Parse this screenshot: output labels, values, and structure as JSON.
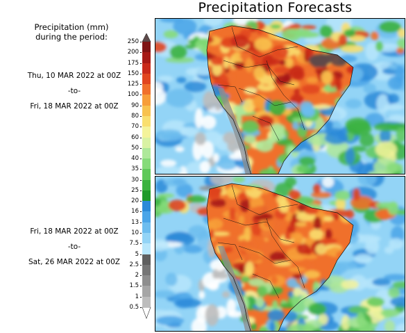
{
  "title": "Precipitation Forecasts",
  "legend": {
    "title_line1": "Precipitation (mm)",
    "title_line2": "during the period:",
    "levels": [
      "0.5",
      "1",
      "1.5",
      "2",
      "2.5",
      "5",
      "7.5",
      "10",
      "13",
      "16",
      "20",
      "25",
      "30",
      "35",
      "40",
      "50",
      "60",
      "70",
      "80",
      "90",
      "100",
      "125",
      "150",
      "175",
      "200",
      "250"
    ],
    "colors": [
      "#bdbdbd",
      "#a6a6a6",
      "#8e8e8e",
      "#767676",
      "#5f5f5f",
      "#b7e6fb",
      "#93d4f6",
      "#6dbdef",
      "#4aa5e8",
      "#2b8ad8",
      "#1f9a2a",
      "#3cb33f",
      "#5fc95a",
      "#86db7a",
      "#aee89a",
      "#d9f2a4",
      "#f4f39b",
      "#f9df6f",
      "#f8c24e",
      "#f79e39",
      "#f0702b",
      "#e1461f",
      "#c92a1a",
      "#a61a16",
      "#7f1414",
      "#5e4a4a"
    ]
  },
  "periods": [
    {
      "from": "Thu, 10 MAR 2022 at 00Z",
      "sep": "-to-",
      "to": "Fri, 18 MAR 2022 at 00Z"
    },
    {
      "from": "Fri, 18 MAR 2022 at 00Z",
      "sep": "-to-",
      "to": "Sat, 26 MAR 2022 at 00Z"
    }
  ],
  "maps": [
    {
      "name": "forecast-map-period-1"
    },
    {
      "name": "forecast-map-period-2"
    }
  ]
}
